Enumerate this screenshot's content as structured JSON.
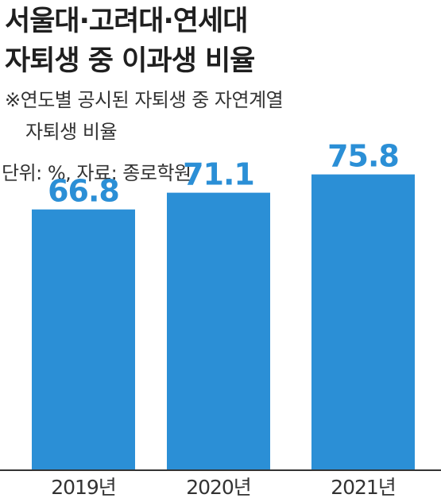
{
  "title": {
    "line1": "서울대·고려대·연세대",
    "line2": "자퇴생 중 이과생 비율"
  },
  "note": {
    "line1": "※연도별 공시된 자퇴생 중 자연계열",
    "line2": "자퇴생 비율"
  },
  "unit_source": "단위: %, 자료: 종로학원",
  "colors": {
    "bar": "#2b8fd6",
    "value_label": "#2b8fd6",
    "axis": "#333333"
  },
  "chart_data": {
    "type": "bar",
    "categories": [
      "2019년",
      "2020년",
      "2021년"
    ],
    "values": [
      66.8,
      71.1,
      75.8
    ],
    "value_labels": [
      "66.8",
      "71.1",
      "75.8"
    ],
    "ylim": [
      0,
      100
    ],
    "grid": false,
    "legend": "none"
  }
}
